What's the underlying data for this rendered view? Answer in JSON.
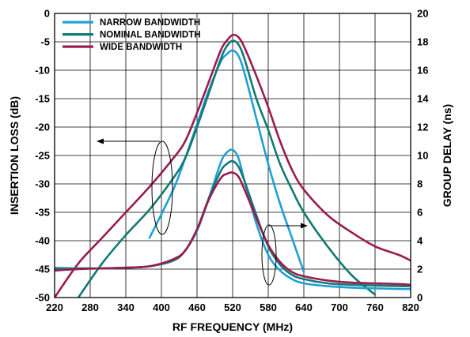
{
  "chart_data": {
    "type": "line",
    "title": "",
    "xlabel": "RF FREQUENCY (MHz)",
    "ylabel": "INSERTION LOSS (dB)",
    "y2label": "GROUP DELAY (ns)",
    "xlim": [
      220,
      820
    ],
    "ylim": [
      -50,
      0
    ],
    "y2lim": [
      0,
      20
    ],
    "xticks": [
      220,
      280,
      340,
      400,
      460,
      520,
      580,
      640,
      700,
      760,
      820
    ],
    "yticks": [
      0,
      -5,
      -10,
      -15,
      -20,
      -25,
      -30,
      -35,
      -40,
      -45,
      -50
    ],
    "y2ticks": [
      20,
      18,
      16,
      14,
      12,
      10,
      8,
      6,
      4,
      2,
      0
    ],
    "grid": true,
    "legend_position": "top-left",
    "x": [
      220,
      260,
      300,
      340,
      380,
      420,
      440,
      460,
      480,
      500,
      510,
      520,
      530,
      540,
      560,
      580,
      600,
      620,
      640,
      680,
      720,
      760,
      800,
      820
    ],
    "series": [
      {
        "name": "NARROW BANDWIDTH",
        "axis": "left",
        "color": "#1ea0d6",
        "values": [
          null,
          null,
          null,
          null,
          -39.5,
          -31.0,
          -25.5,
          -19.5,
          -13.5,
          -8.5,
          -7.2,
          -6.5,
          -7.5,
          -10.5,
          -18.5,
          -26.5,
          -33.5,
          -39.5,
          -45.5,
          null,
          null,
          null,
          null,
          null
        ]
      },
      {
        "name": "NOMINAL BANDWIDTH",
        "axis": "left",
        "color": "#117a74",
        "values": [
          null,
          -50.0,
          -44.0,
          -39.0,
          -34.5,
          -29.0,
          -25.5,
          -20.0,
          -14.0,
          -8.0,
          -5.8,
          -4.8,
          -5.5,
          -8.0,
          -15.0,
          -20.5,
          -26.5,
          -31.0,
          -35.0,
          -41.0,
          -46.0,
          -49.5,
          null,
          null
        ]
      },
      {
        "name": "WIDE BANDWIDTH",
        "axis": "left",
        "color": "#9b1b4f",
        "values": [
          -50.0,
          -44.0,
          -39.5,
          -35.0,
          -30.5,
          -25.5,
          -22.5,
          -17.5,
          -12.0,
          -6.5,
          -4.8,
          -3.8,
          -4.2,
          -6.0,
          -11.0,
          -16.5,
          -22.5,
          -27.5,
          -31.0,
          -35.5,
          -38.5,
          -41.0,
          -42.5,
          -43.5
        ]
      },
      {
        "name": "NARROW BANDWIDTH",
        "axis": "right",
        "color": "#1ea0d6",
        "values": [
          2.1,
          2.05,
          2.05,
          2.1,
          2.2,
          2.6,
          3.3,
          4.7,
          7.0,
          9.5,
          10.2,
          10.4,
          9.8,
          8.2,
          5.2,
          3.0,
          1.9,
          1.3,
          1.0,
          0.8,
          0.7,
          0.65,
          0.6,
          0.6
        ]
      },
      {
        "name": "NOMINAL BANDWIDTH",
        "axis": "right",
        "color": "#117a74",
        "values": [
          2.0,
          2.05,
          2.05,
          2.1,
          2.2,
          2.6,
          3.3,
          4.8,
          7.0,
          8.9,
          9.4,
          9.6,
          9.2,
          8.2,
          5.8,
          3.6,
          2.3,
          1.6,
          1.3,
          1.0,
          0.9,
          0.85,
          0.8,
          0.8
        ]
      },
      {
        "name": "WIDE BANDWIDTH",
        "axis": "right",
        "color": "#9b1b4f",
        "values": [
          1.9,
          2.0,
          2.05,
          2.1,
          2.2,
          2.7,
          3.3,
          4.8,
          6.9,
          8.4,
          8.7,
          8.8,
          8.5,
          7.6,
          5.6,
          3.7,
          2.5,
          1.8,
          1.5,
          1.2,
          1.05,
          1.0,
          0.95,
          0.9
        ]
      }
    ]
  }
}
